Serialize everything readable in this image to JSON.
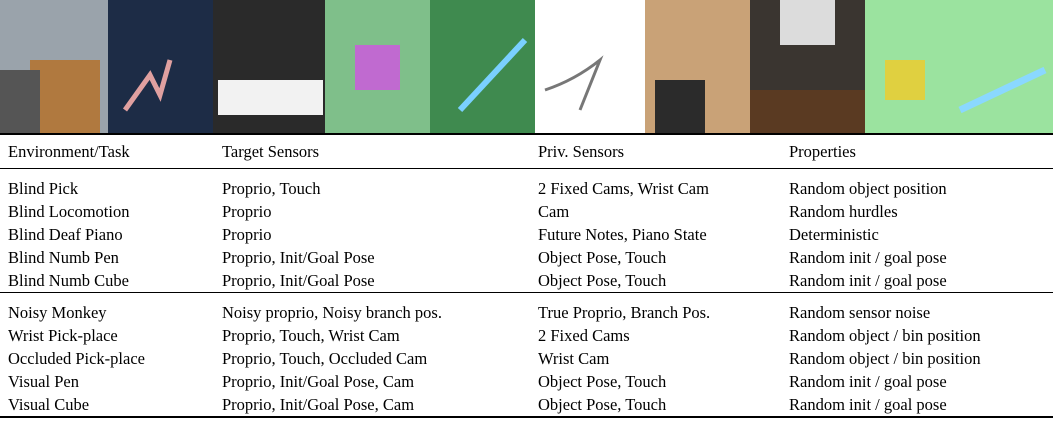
{
  "table": {
    "columns": [
      "Environment/Task",
      "Target Sensors",
      "Priv. Sensors",
      "Properties"
    ],
    "groups": [
      [
        [
          "Blind Pick",
          "Proprio, Touch",
          "2 Fixed Cams, Wrist Cam",
          "Random object position"
        ],
        [
          "Blind Locomotion",
          "Proprio",
          "Cam",
          "Random hurdles"
        ],
        [
          "Blind Deaf Piano",
          "Proprio",
          "Future Notes, Piano State",
          "Deterministic"
        ],
        [
          "Blind Numb Pen",
          "Proprio, Init/Goal Pose",
          "Object Pose, Touch",
          "Random init / goal pose"
        ],
        [
          "Blind Numb Cube",
          "Proprio, Init/Goal Pose",
          "Object Pose, Touch",
          "Random init / goal pose"
        ]
      ],
      [
        [
          "Noisy Monkey",
          "Noisy proprio, Noisy branch pos.",
          "True Proprio, Branch Pos.",
          "Random sensor noise"
        ],
        [
          "Wrist Pick-place",
          "Proprio, Touch, Wrist Cam",
          "2 Fixed Cams",
          "Random object / bin position"
        ],
        [
          "Occluded Pick-place",
          "Proprio, Touch, Occluded Cam",
          "Wrist Cam",
          "Random object / bin position"
        ],
        [
          "Visual Pen",
          "Proprio, Init/Goal Pose, Cam",
          "Object Pose, Touch",
          "Random init / goal pose"
        ],
        [
          "Visual Cube",
          "Proprio, Init/Goal Pose, Cam",
          "Object Pose, Touch",
          "Random init / goal pose"
        ]
      ]
    ]
  }
}
